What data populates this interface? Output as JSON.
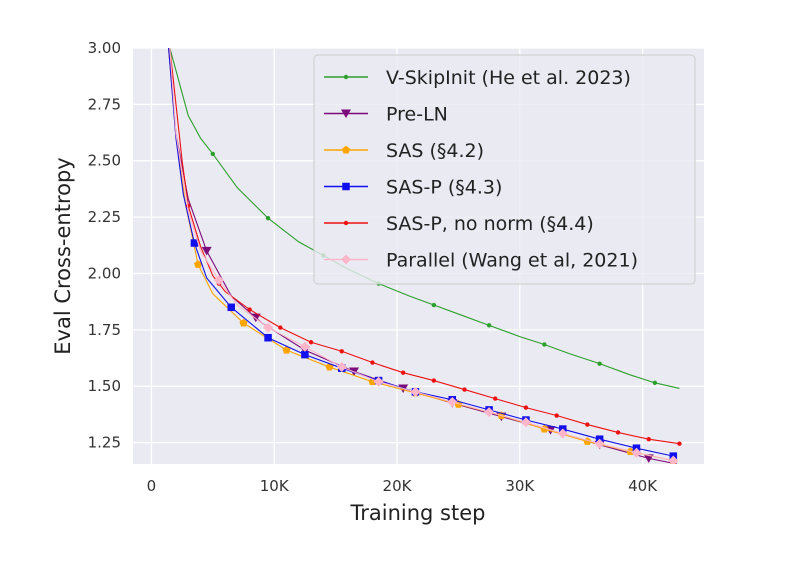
{
  "chart_data": {
    "type": "line",
    "title": "",
    "xlabel": "Training step",
    "ylabel": "Eval Cross-entropy",
    "xlim": [
      -1500,
      45000
    ],
    "ylim": [
      1.155,
      3.0
    ],
    "xticks": [
      0,
      10000,
      20000,
      30000,
      40000
    ],
    "xtick_labels": [
      "0",
      "10K",
      "20K",
      "30K",
      "40K"
    ],
    "yticks": [
      1.25,
      1.5,
      1.75,
      2.0,
      2.25,
      2.5,
      2.75,
      3.0
    ],
    "ytick_labels": [
      "1.25",
      "1.50",
      "1.75",
      "2.00",
      "2.25",
      "2.50",
      "2.75",
      "3.00"
    ],
    "grid": true,
    "legend_position": "top-right",
    "series": [
      {
        "name": "V-SkipInit (He et al. 2023)",
        "color": "#2ca02c",
        "marker": "circle",
        "x": [
          1500,
          2000,
          3000,
          4000,
          5000,
          7000,
          9500,
          12000,
          14000,
          16000,
          18500,
          21000,
          23000,
          25000,
          27500,
          30000,
          32000,
          34000,
          36500,
          39000,
          41000,
          43000
        ],
        "y": [
          3.0,
          2.9,
          2.7,
          2.6,
          2.53,
          2.38,
          2.245,
          2.14,
          2.08,
          2.02,
          1.955,
          1.9,
          1.86,
          1.82,
          1.77,
          1.72,
          1.685,
          1.645,
          1.6,
          1.55,
          1.515,
          1.49
        ],
        "marker_x": [
          5000,
          9500,
          14000,
          18500,
          23000,
          27500,
          32000,
          36500,
          41000
        ]
      },
      {
        "name": "Pre-LN",
        "color": "#7b0a7b",
        "marker": "triangle-down",
        "x": [
          1400,
          2000,
          3000,
          4500,
          6500,
          9000,
          12500,
          16500,
          20500,
          24500,
          28500,
          32500,
          36500,
          40500,
          42800
        ],
        "y": [
          3.0,
          2.62,
          2.33,
          2.1,
          1.9,
          1.78,
          1.66,
          1.565,
          1.49,
          1.425,
          1.365,
          1.305,
          1.24,
          1.18,
          1.155
        ],
        "marker_x": [
          4500,
          8500,
          12500,
          16500,
          20500,
          24500,
          28500,
          32500,
          36500,
          40500
        ]
      },
      {
        "name": "SAS (§4.2)",
        "color": "#ffa500",
        "marker": "pentagon",
        "x": [
          1400,
          2000,
          2800,
          3800,
          5000,
          7500,
          11000,
          14500,
          18000,
          21500,
          25000,
          28500,
          32000,
          35500,
          39000,
          42500
        ],
        "y": [
          3.0,
          2.6,
          2.3,
          2.04,
          1.91,
          1.78,
          1.66,
          1.585,
          1.52,
          1.47,
          1.42,
          1.37,
          1.31,
          1.255,
          1.21,
          1.17
        ],
        "marker_x": [
          3800,
          7500,
          11000,
          14500,
          18000,
          21500,
          25000,
          28500,
          32000,
          35500,
          39000,
          42500
        ]
      },
      {
        "name": "SAS-P (§4.3)",
        "color": "#1010ee",
        "marker": "square",
        "x": [
          1400,
          2000,
          2600,
          3500,
          4500,
          6500,
          9500,
          12500,
          15500,
          18500,
          21500,
          24500,
          27500,
          30500,
          33500,
          36500,
          39500,
          42500
        ],
        "y": [
          3.0,
          2.6,
          2.35,
          2.135,
          1.98,
          1.85,
          1.715,
          1.64,
          1.58,
          1.525,
          1.475,
          1.44,
          1.395,
          1.35,
          1.31,
          1.265,
          1.225,
          1.19
        ],
        "marker_x": [
          3500,
          6500,
          9500,
          12500,
          15500,
          18500,
          21500,
          24500,
          27500,
          30500,
          33500,
          36500,
          39500,
          42500
        ]
      },
      {
        "name": "SAS-P, no norm (§4.4)",
        "color": "#ee1010",
        "marker": "circle",
        "x": [
          1500,
          2000,
          2500,
          3000,
          4000,
          5000,
          6000,
          8000,
          10500,
          13000,
          15500,
          18000,
          20500,
          23000,
          25500,
          28000,
          30500,
          33000,
          35500,
          38000,
          40500,
          43000
        ],
        "y": [
          3.0,
          2.75,
          2.5,
          2.3,
          2.12,
          1.99,
          1.92,
          1.84,
          1.76,
          1.695,
          1.655,
          1.605,
          1.56,
          1.525,
          1.485,
          1.445,
          1.405,
          1.37,
          1.33,
          1.295,
          1.265,
          1.245
        ],
        "marker_x": [
          3000,
          5500,
          8000,
          10500,
          13000,
          15500,
          18000,
          20500,
          23000,
          25500,
          28000,
          30500,
          33000,
          35500,
          38000,
          40500,
          43000
        ]
      },
      {
        "name": "Parallel (Wang et al, 2021)",
        "color": "#ffb6c8",
        "marker": "diamond",
        "x": [
          1500,
          2000,
          3000,
          4000,
          5500,
          7000,
          9500,
          12500,
          15500,
          18500,
          21500,
          24500,
          27500,
          30500,
          33500,
          36500,
          39500,
          42500
        ],
        "y": [
          3.0,
          2.62,
          2.28,
          2.1,
          1.97,
          1.86,
          1.76,
          1.675,
          1.585,
          1.52,
          1.475,
          1.43,
          1.385,
          1.34,
          1.29,
          1.245,
          1.205,
          1.17
        ],
        "marker_x": [
          5500,
          9500,
          12500,
          15500,
          18500,
          21500,
          24500,
          27500,
          30500,
          33500,
          36500,
          39500,
          42500
        ]
      }
    ]
  }
}
